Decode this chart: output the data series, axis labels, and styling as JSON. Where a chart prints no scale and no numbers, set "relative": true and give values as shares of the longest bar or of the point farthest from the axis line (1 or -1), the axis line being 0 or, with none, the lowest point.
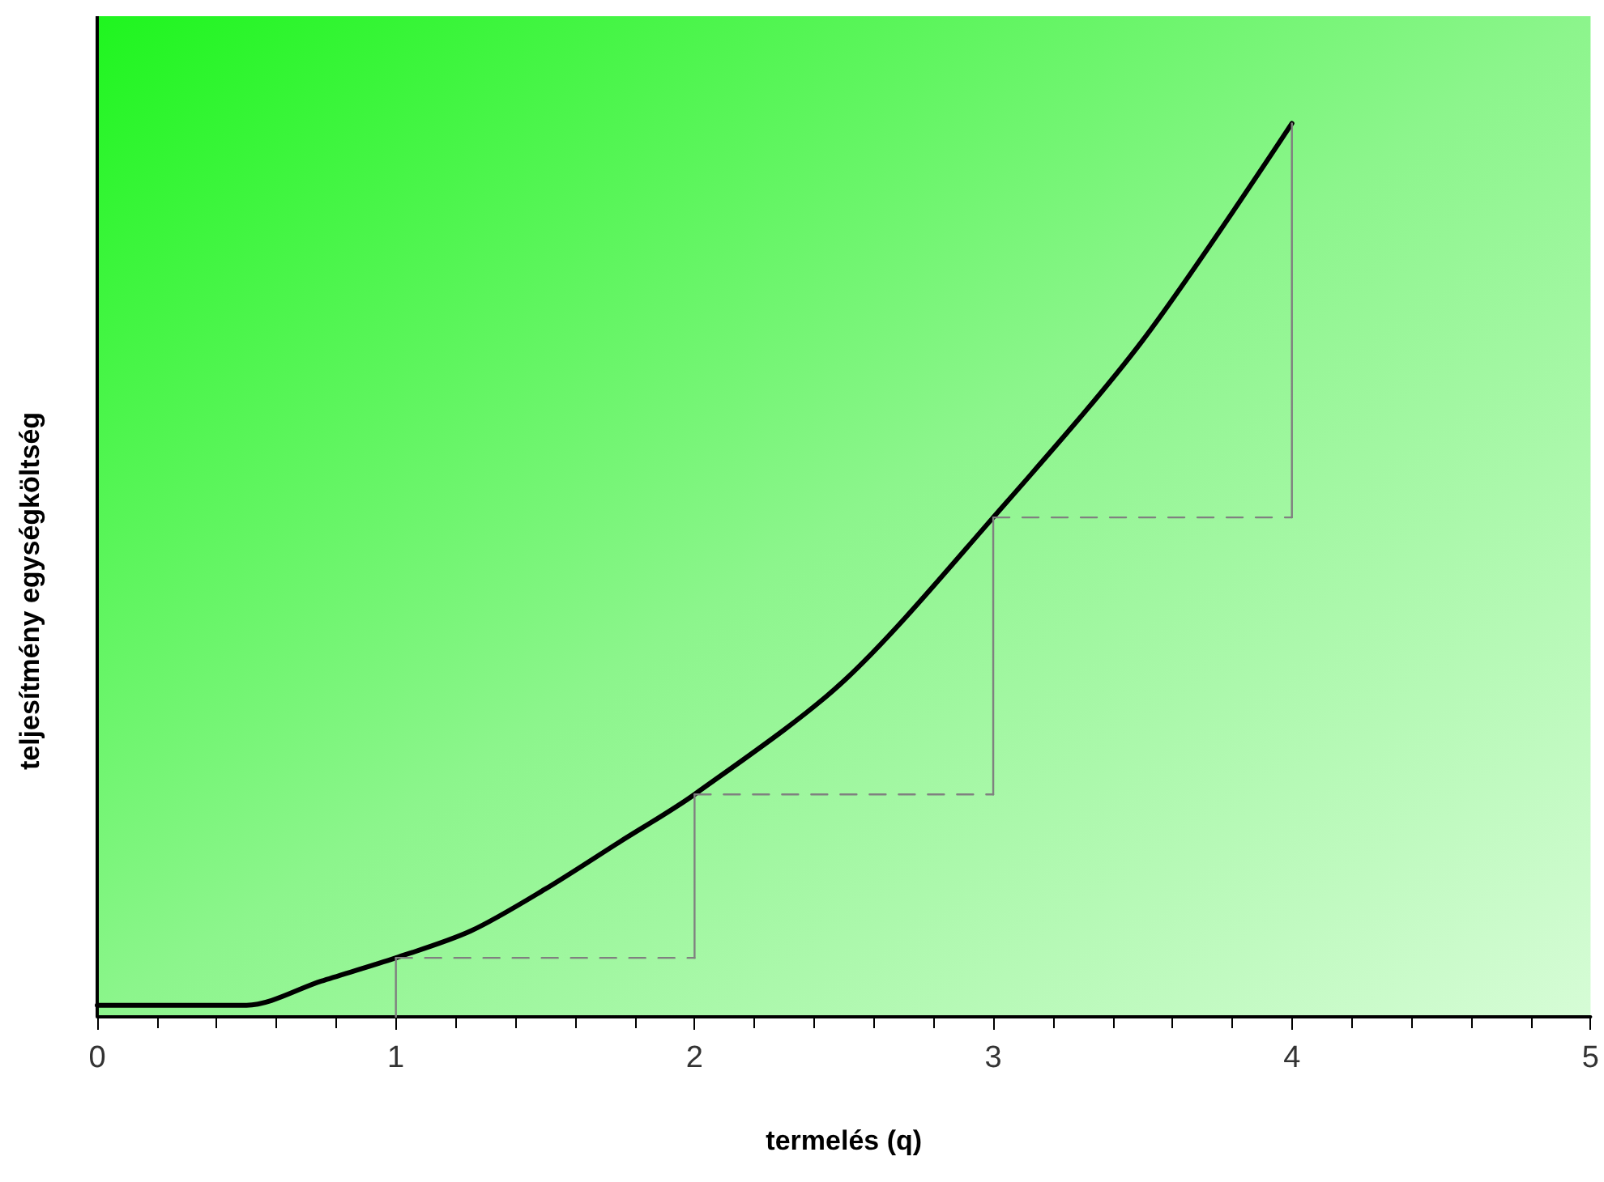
{
  "chart_data": {
    "type": "line",
    "relative": true,
    "xlabel": "termelés (q)",
    "ylabel": "teljesítmény egységköltség",
    "xlim": [
      0,
      5
    ],
    "xticks": [
      0,
      1,
      2,
      3,
      4,
      5
    ],
    "grid": false,
    "marker": "none",
    "series": [
      {
        "color": "#000000",
        "line_style": "solid",
        "x": [
          0,
          0.5,
          0.75,
          1,
          1.25,
          1.5,
          1.75,
          2,
          2.5,
          3,
          3.5,
          4
        ],
        "values": [
          0.013,
          0.013,
          0.04,
          0.066,
          0.096,
          0.143,
          0.196,
          0.249,
          0.376,
          0.559,
          0.757,
          1
        ]
      },
      {
        "color": "#808080",
        "line_style": "solid",
        "x": [
          1,
          1
        ],
        "values": [
          0,
          0.066
        ]
      },
      {
        "color": "#808080",
        "line_style": "dashed",
        "x": [
          1,
          2
        ],
        "values": [
          0.066,
          0.066
        ]
      },
      {
        "color": "#808080",
        "line_style": "solid",
        "x": [
          2,
          2
        ],
        "values": [
          0.066,
          0.249
        ]
      },
      {
        "color": "#808080",
        "line_style": "dashed",
        "x": [
          2,
          3
        ],
        "values": [
          0.249,
          0.249
        ]
      },
      {
        "color": "#808080",
        "line_style": "solid",
        "x": [
          3,
          3
        ],
        "values": [
          0.249,
          0.559
        ]
      },
      {
        "color": "#808080",
        "line_style": "dashed",
        "x": [
          3,
          4
        ],
        "values": [
          0.559,
          0.559
        ]
      },
      {
        "color": "#808080",
        "line_style": "solid",
        "x": [
          4,
          4
        ],
        "values": [
          0.559,
          1
        ]
      }
    ]
  }
}
